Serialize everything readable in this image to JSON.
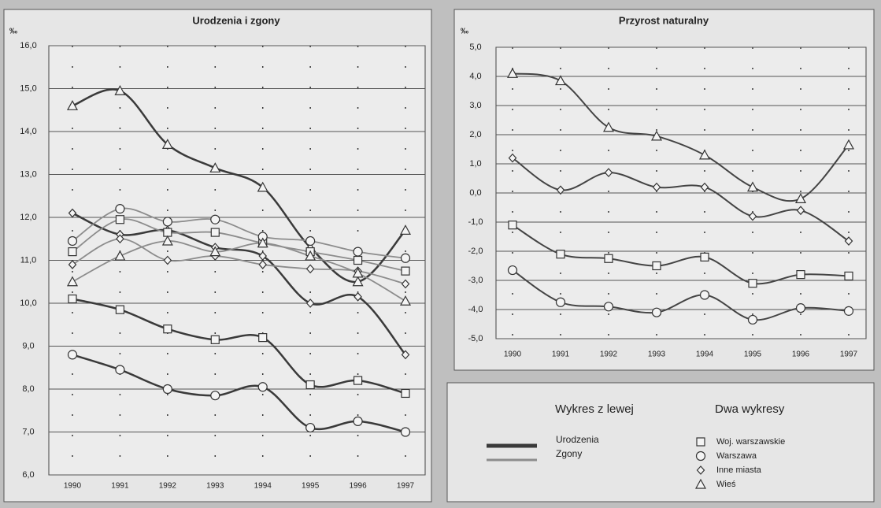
{
  "chart_data": [
    {
      "type": "line",
      "title": "Urodzenia i zgony",
      "ylabel": "‰",
      "categories": [
        "1990",
        "1991",
        "1992",
        "1993",
        "1994",
        "1995",
        "1996",
        "1997"
      ],
      "ylim": [
        6,
        16
      ],
      "yticks": [
        {
          "value": 6,
          "label": "6,0"
        },
        {
          "value": 7,
          "label": "7,0"
        },
        {
          "value": 8,
          "label": "8,0"
        },
        {
          "value": 9,
          "label": "9,0"
        },
        {
          "value": 10,
          "label": "10,0"
        },
        {
          "value": 11,
          "label": "11,0"
        },
        {
          "value": 12,
          "label": "12,0"
        },
        {
          "value": 13,
          "label": "13,0"
        },
        {
          "value": 14,
          "label": "14,0"
        },
        {
          "value": 15,
          "label": "15,0"
        },
        {
          "value": 16,
          "label": "16,0"
        }
      ],
      "grid": true,
      "series": [
        {
          "name": "Urodzenia",
          "color": "#3a3a3a",
          "values": [
            [
              10.1,
              9.85,
              9.4,
              9.15,
              9.2,
              8.1,
              8.2,
              7.9
            ],
            [
              8.8,
              8.45,
              8.0,
              7.85,
              8.05,
              7.1,
              7.25,
              7.0
            ],
            [
              12.1,
              11.6,
              11.7,
              11.3,
              11.1,
              10.0,
              10.15,
              8.8
            ],
            [
              14.6,
              14.95,
              13.7,
              13.15,
              12.7,
              11.3,
              10.5,
              11.7
            ]
          ]
        },
        {
          "name": "Zgony",
          "color": "#8c8c8c",
          "values": [
            [
              11.2,
              11.95,
              11.65,
              11.65,
              11.4,
              11.2,
              11.0,
              10.75
            ],
            [
              11.45,
              12.2,
              11.9,
              11.95,
              11.55,
              11.45,
              11.2,
              11.05
            ],
            [
              10.9,
              11.5,
              11.0,
              11.1,
              10.9,
              10.8,
              10.75,
              10.45
            ],
            [
              10.5,
              11.1,
              11.45,
              11.2,
              11.4,
              11.1,
              10.7,
              10.05
            ]
          ]
        }
      ]
    },
    {
      "type": "line",
      "title": "Przyrost naturalny",
      "ylabel": "‰",
      "color": "#444444",
      "categories": [
        "1990",
        "1991",
        "1992",
        "1993",
        "1994",
        "1995",
        "1996",
        "1997"
      ],
      "ylim": [
        -5,
        5
      ],
      "yticks": [
        {
          "value": -5,
          "label": "-5,0"
        },
        {
          "value": -4,
          "label": "-4,0"
        },
        {
          "value": -3,
          "label": "-3,0"
        },
        {
          "value": -2,
          "label": "-2,0"
        },
        {
          "value": -1,
          "label": "-1,0"
        },
        {
          "value": 0,
          "label": "0,0"
        },
        {
          "value": 1,
          "label": "1,0"
        },
        {
          "value": 2,
          "label": "2,0"
        },
        {
          "value": 3,
          "label": "3,0"
        },
        {
          "value": 4,
          "label": "4,0"
        },
        {
          "value": 5,
          "label": "5,0"
        }
      ],
      "grid": true,
      "values": [
        [
          -1.1,
          -2.1,
          -2.25,
          -2.5,
          -2.2,
          -3.1,
          -2.8,
          -2.85
        ],
        [
          -2.65,
          -3.75,
          -3.9,
          -4.1,
          -3.5,
          -4.35,
          -3.95,
          -4.05
        ],
        [
          1.2,
          0.1,
          0.7,
          0.2,
          0.2,
          -0.8,
          -0.6,
          -1.65
        ],
        [
          4.1,
          3.85,
          2.25,
          1.95,
          1.3,
          0.2,
          -0.2,
          1.65
        ]
      ]
    }
  ],
  "legend": {
    "titles": [
      "Wykres z lewej",
      "Dwa wykresy"
    ],
    "markers": [
      {
        "name": "Woj. warszawskie",
        "marker": "square"
      },
      {
        "name": "Warszawa",
        "marker": "circle"
      },
      {
        "name": "Inne miasta",
        "marker": "diamond"
      },
      {
        "name": "Wieś",
        "marker": "triangle"
      }
    ]
  }
}
